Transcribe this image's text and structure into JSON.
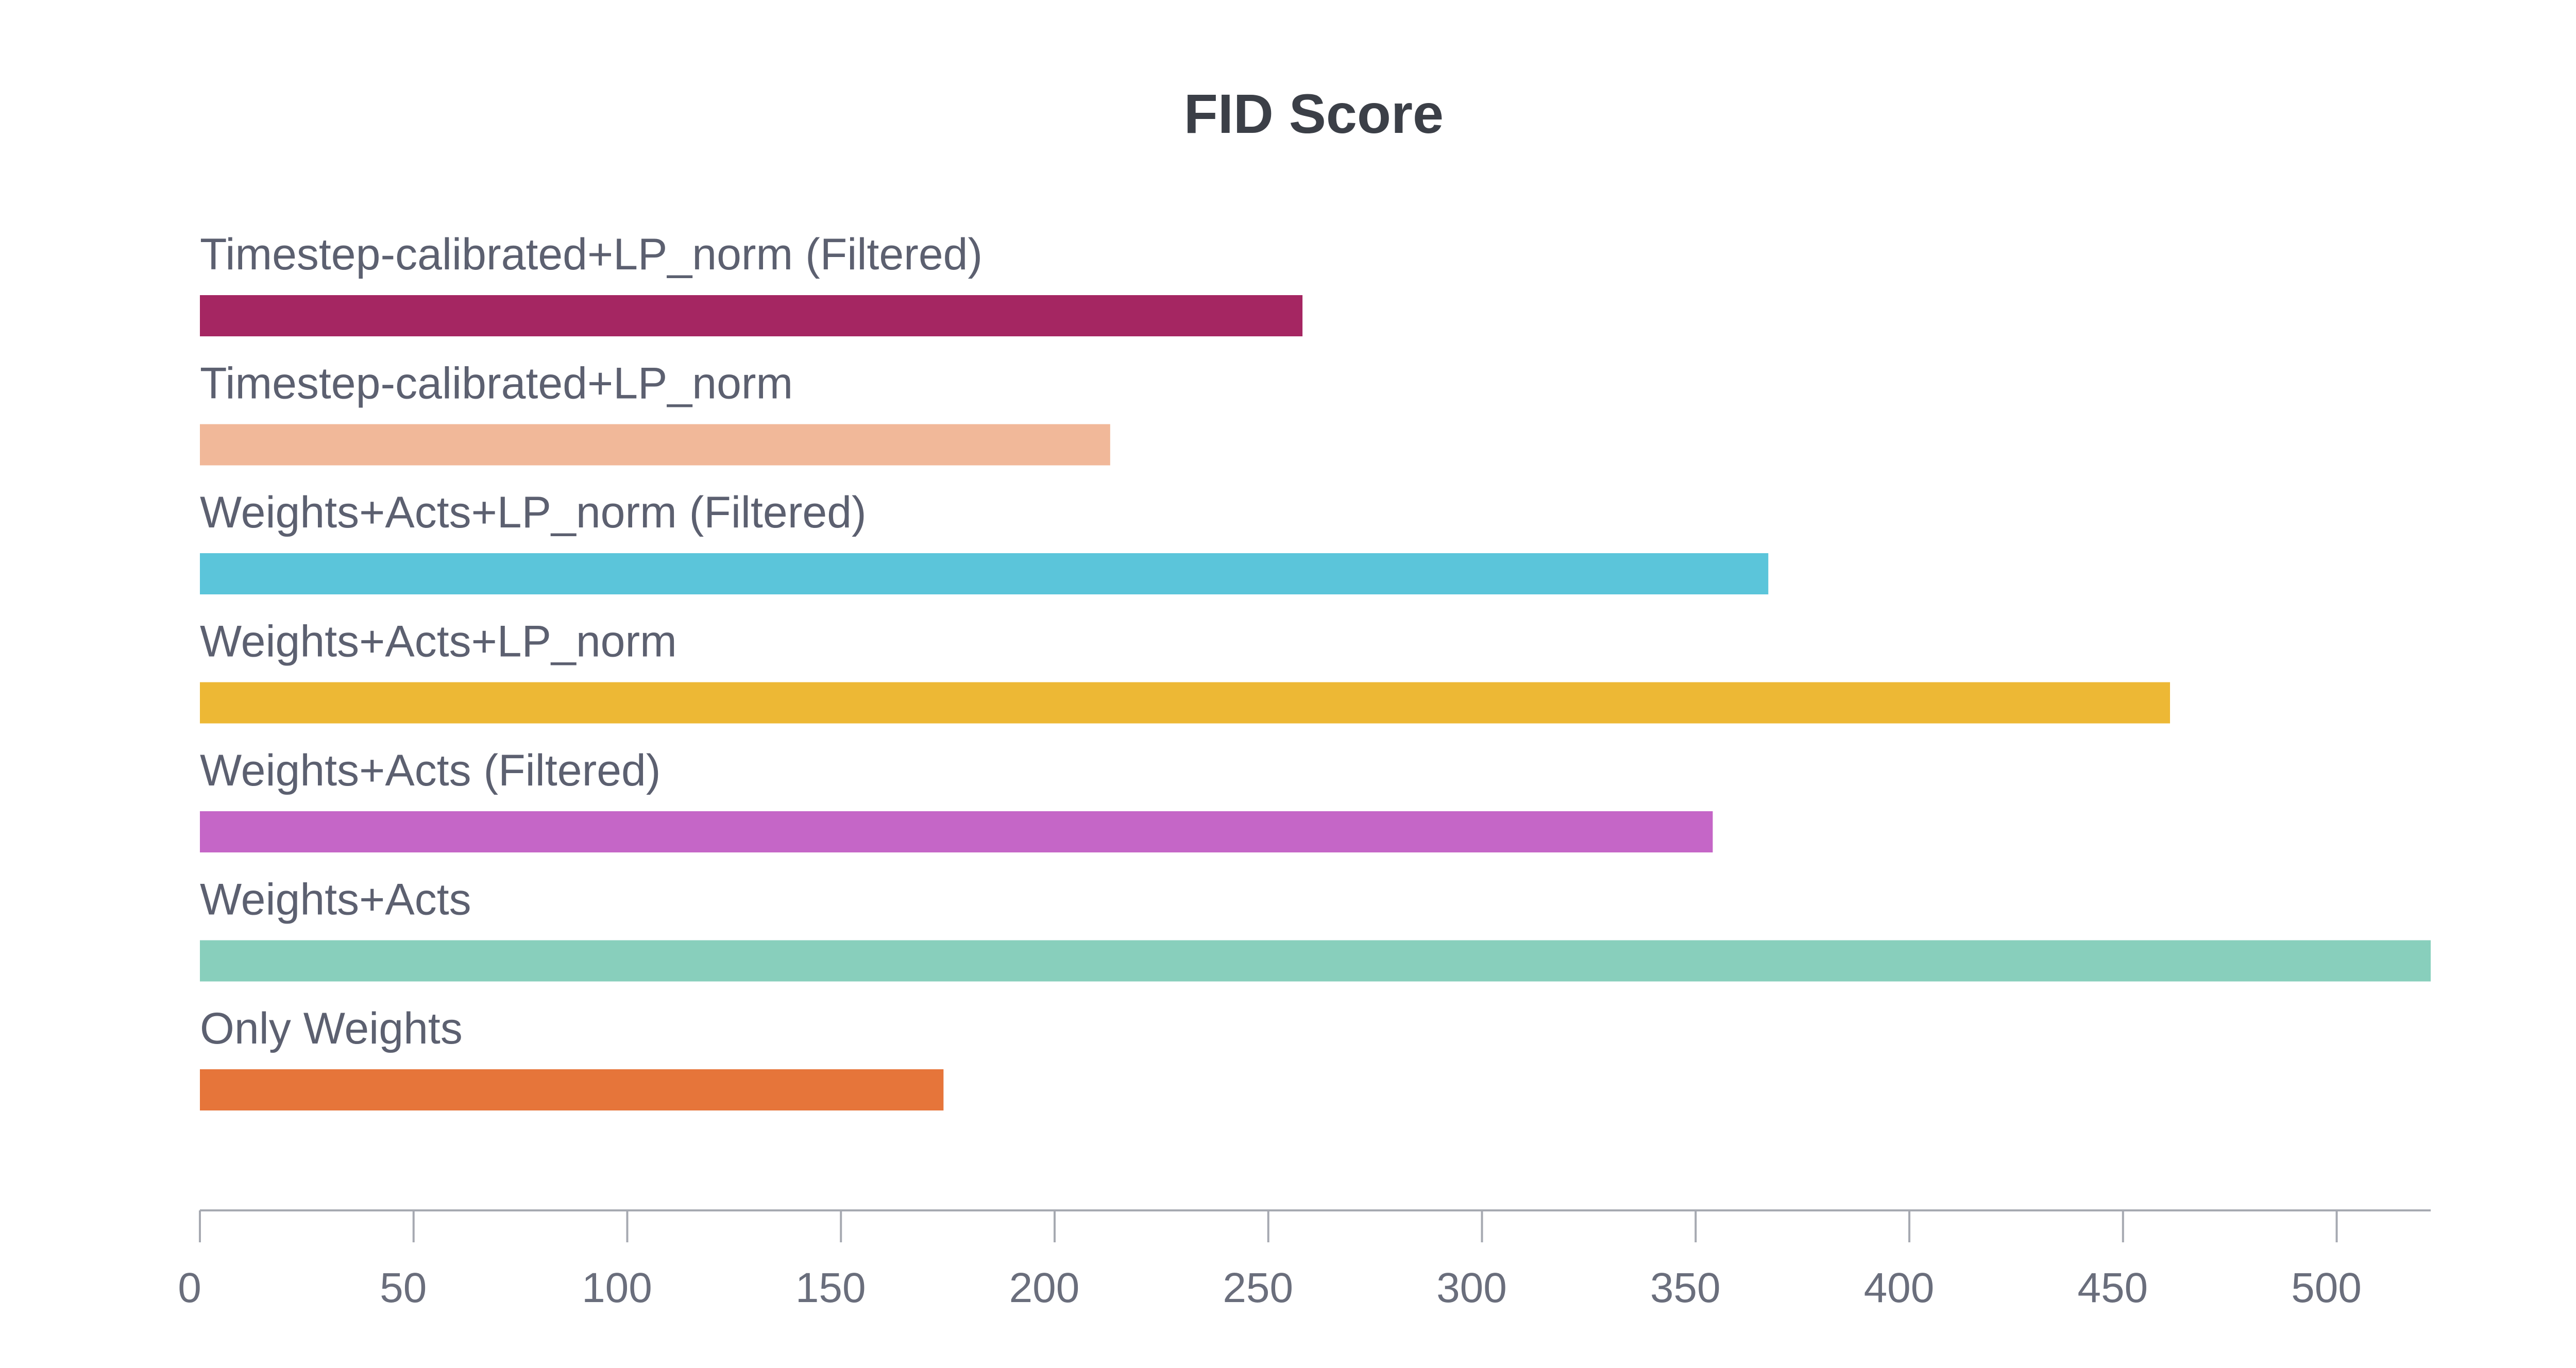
{
  "chart_data": {
    "type": "bar",
    "orientation": "horizontal",
    "title": "FID Score",
    "xlabel": "",
    "ylabel": "",
    "categories": [
      "Timestep-calibrated+LP_norm (Filtered)",
      "Timestep-calibrated+LP_norm",
      "Weights+Acts+LP_norm (Filtered)",
      "Weights+Acts+LP_norm",
      "Weights+Acts (Filtered)",
      "Weights+Acts",
      "Only Weights"
    ],
    "values": [
      258,
      213,
      367,
      461,
      354,
      522,
      174
    ],
    "colors": [
      "#a52662",
      "#f1b899",
      "#5bc5da",
      "#edb835",
      "#c566c7",
      "#88cfbc",
      "#e6753a"
    ],
    "xlim": [
      0,
      522
    ],
    "xticks": [
      0,
      50,
      100,
      150,
      200,
      250,
      300,
      350,
      400,
      450,
      500
    ],
    "grid": false,
    "legend": "none"
  }
}
